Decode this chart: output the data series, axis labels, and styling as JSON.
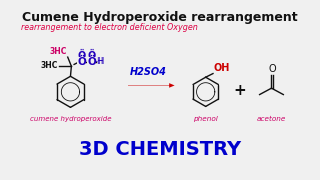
{
  "title": "Cumene Hydroperoxide rearrangement",
  "subtitle": "rearrangement to electron deficient Oxygen",
  "footer": "3D CHEMISTRY",
  "catalyst": "H2SO4",
  "label_cumene": "cumene hydroperoxide",
  "label_phenol": "phenol",
  "label_acetone": "acetone",
  "bg_color": "#f0f0f0",
  "title_color": "#111111",
  "subtitle_color": "#dd0044",
  "footer_color": "#0000cc",
  "label_color": "#cc0066",
  "catalyst_color": "#0000cc",
  "arrow_color": "#cc0000",
  "oh_color": "#cc0000",
  "methyl_color_top": "#cc0066",
  "methyl_color_bot": "#111111",
  "oo_color": "#2200bb",
  "bond_color": "#111111"
}
